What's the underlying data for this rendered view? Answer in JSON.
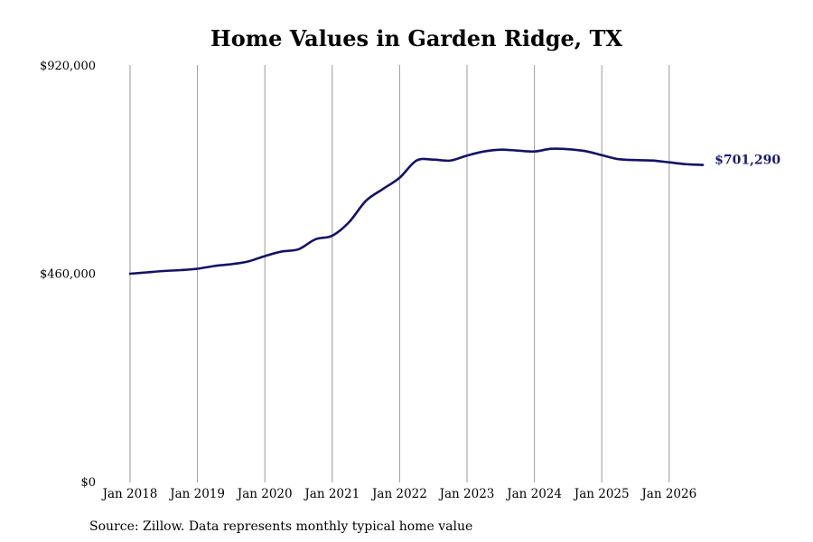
{
  "chart_data": {
    "type": "line",
    "title": "Home Values in Garden Ridge, TX",
    "xlabel": "",
    "ylabel": "",
    "y_ticks": [
      {
        "value": 920000,
        "label": "$920,000"
      },
      {
        "value": 460000,
        "label": "$460,000"
      },
      {
        "value": 0,
        "label": "$0"
      }
    ],
    "ylim": [
      0,
      920000
    ],
    "x_ticks": [
      "Jan 2018",
      "Jan 2019",
      "Jan 2020",
      "Jan 2021",
      "Jan 2022",
      "Jan 2023",
      "Jan 2024",
      "Jan 2025",
      "Jan 2026"
    ],
    "xlim": [
      2018,
      2026.5
    ],
    "grid": {
      "vertical": true,
      "horizontal": false
    },
    "series": [
      {
        "color": "#131366",
        "x": [
          2018.0,
          2018.25,
          2018.5,
          2018.75,
          2019.0,
          2019.25,
          2019.5,
          2019.75,
          2020.0,
          2020.25,
          2020.5,
          2020.75,
          2021.0,
          2021.25,
          2021.5,
          2021.75,
          2022.0,
          2022.25,
          2022.5,
          2022.75,
          2023.0,
          2023.25,
          2023.5,
          2023.75,
          2024.0,
          2024.25,
          2024.5,
          2024.75,
          2025.0,
          2025.25,
          2025.5,
          2025.75,
          2026.0,
          2026.25,
          2026.5
        ],
        "values": [
          461000,
          464000,
          467000,
          469000,
          472000,
          478000,
          482000,
          488000,
          500000,
          510000,
          515000,
          537000,
          545000,
          575000,
          622000,
          648000,
          673000,
          711000,
          713000,
          711000,
          722000,
          731000,
          735000,
          733000,
          731000,
          737000,
          736000,
          732000,
          723000,
          714000,
          712000,
          711000,
          707000,
          703000,
          701290
        ]
      }
    ],
    "end_label": "$701,290"
  },
  "source_note": "Source: Zillow. Data represents monthly typical home value"
}
